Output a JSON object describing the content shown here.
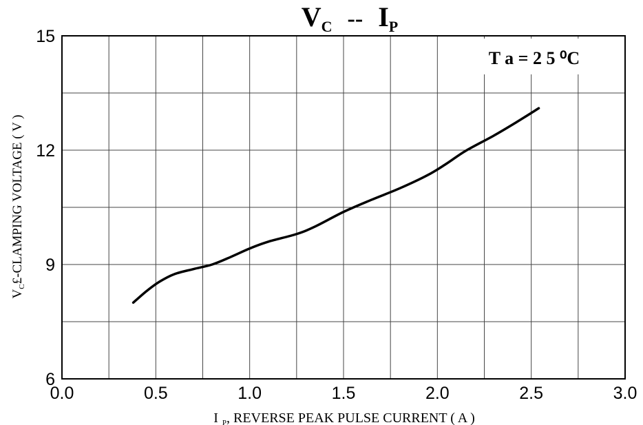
{
  "chart_data": {
    "type": "line",
    "title": {
      "main_v": "V",
      "main_v_sub": "C",
      "sep": "--",
      "main_i": "I",
      "main_i_sub": "P"
    },
    "annotation": "T a = 2 5 ⁰C",
    "xlabel": {
      "prefix": "I",
      "sub": "P",
      "text": ", REVERSE PEAK PULSE CURRENT ( A )"
    },
    "ylabel": {
      "prefix": "V",
      "sub": "C",
      "text": "£-CLAMPING VOLTAGE ( V )"
    },
    "xlim": [
      0.0,
      3.0
    ],
    "ylim": [
      6,
      15
    ],
    "x_ticks": [
      0.0,
      0.5,
      1.0,
      1.5,
      2.0,
      2.5,
      3.0
    ],
    "x_tick_labels": [
      "0.0",
      "0.5",
      "1.0",
      "1.5",
      "2.0",
      "2.5",
      "3.0"
    ],
    "y_ticks": [
      6,
      9,
      12,
      15
    ],
    "y_tick_labels": [
      "6",
      "9",
      "12",
      "15"
    ],
    "x_grid": [
      0.25,
      0.5,
      0.75,
      1.0,
      1.25,
      1.5,
      1.75,
      2.0,
      2.25,
      2.5,
      2.75
    ],
    "y_grid": [
      7.5,
      9,
      10.5,
      12,
      13.5
    ],
    "grid": true,
    "line_color": "#000000",
    "series": [
      {
        "x": [
          0.38,
          0.45,
          0.52,
          0.6,
          0.7,
          0.8,
          0.9,
          1.0,
          1.1,
          1.25,
          1.35,
          1.5,
          1.65,
          1.8,
          1.95,
          2.05,
          2.15,
          2.3,
          2.42,
          2.54
        ],
        "y": [
          8.0,
          8.3,
          8.55,
          8.75,
          8.88,
          9.0,
          9.2,
          9.42,
          9.6,
          9.8,
          10.0,
          10.38,
          10.7,
          11.0,
          11.35,
          11.65,
          11.98,
          12.38,
          12.73,
          13.1
        ]
      }
    ]
  }
}
